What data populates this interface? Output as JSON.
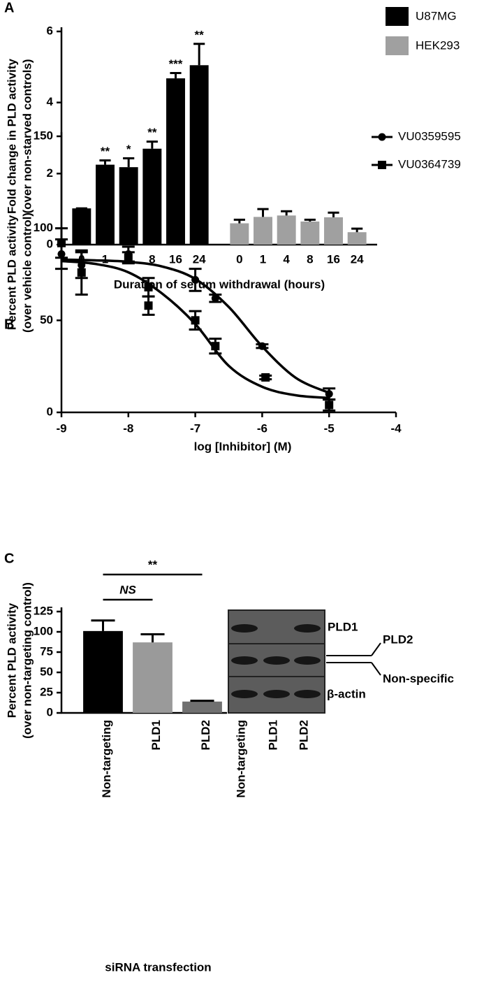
{
  "chart_data": [
    {
      "type": "bar",
      "panel": "A",
      "ylabel": [
        "Fold change in PLD activity",
        "(over non-starved controls)"
      ],
      "xlabel": "Duration of serum withdrawal (hours)",
      "categories": [
        "0",
        "1",
        "4",
        "8",
        "16",
        "24"
      ],
      "series": [
        {
          "name": "U87MG",
          "color": "#000000",
          "values": [
            1.02,
            2.25,
            2.18,
            2.7,
            4.68,
            5.05
          ],
          "errors": [
            0,
            0.12,
            0.25,
            0.2,
            0.15,
            0.6
          ],
          "annotations": [
            null,
            "**",
            "*",
            "**",
            "***",
            "**"
          ]
        },
        {
          "name": "HEK293",
          "color": "#a0a0a0",
          "values": [
            0.6,
            0.78,
            0.82,
            0.65,
            0.77,
            0.35
          ],
          "errors": [
            0.1,
            0.22,
            0.12,
            0.05,
            0.13,
            0.1
          ]
        }
      ],
      "ylim": [
        0,
        6
      ],
      "yticks": [
        0,
        2,
        4,
        6
      ],
      "legend": "top-right"
    },
    {
      "type": "scatter",
      "panel": "B",
      "ylabel": [
        "Percent PLD activity",
        "(over vehicle control)"
      ],
      "xlabel": "log [Inhibitor] (M)",
      "xlim": [
        -9,
        -4
      ],
      "xticks": [
        -9,
        -8,
        -7,
        -6,
        -5,
        -4
      ],
      "ylim": [
        0,
        150
      ],
      "yticks": [
        0,
        50,
        100,
        150
      ],
      "legend": "top-right",
      "series": [
        {
          "name": "VU0359595",
          "color": "#000000",
          "marker": "circle",
          "x": [
            -9,
            -8.7,
            -8,
            -7,
            -6.7,
            -6,
            -5
          ],
          "values": [
            86,
            80,
            86,
            72,
            62,
            36,
            10
          ],
          "errors": [
            8,
            7,
            4,
            6,
            2,
            1,
            3
          ],
          "curve": {
            "x": [
              -9,
              -8.5,
              -8,
              -7.5,
              -7,
              -6.5,
              -6,
              -5.5,
              -5
            ],
            "y": [
              83,
              82.6,
              81.8,
              79.3,
              72.5,
              57.3,
              35.8,
              18.8,
              10.6
            ]
          }
        },
        {
          "name": "VU0364739",
          "color": "#000000",
          "marker": "square",
          "x": [
            -9,
            -8.7,
            -8,
            -7.7,
            -7.7,
            -7,
            -6.7,
            -5.95,
            -5
          ],
          "values": [
            92,
            76,
            84,
            68,
            58,
            50,
            36,
            19,
            4
          ],
          "errors": [
            8,
            12,
            3,
            5,
            5,
            5,
            4,
            1,
            3
          ],
          "curve": {
            "x": [
              -9,
              -8.5,
              -8,
              -7.5,
              -7,
              -6.5,
              -6,
              -5.5,
              -5
            ],
            "y": [
              82.2,
              80.7,
              76.1,
              64.7,
              48,
              25.3,
              13.9,
              9.3,
              7.8
            ]
          }
        }
      ]
    },
    {
      "type": "bar",
      "panel": "C",
      "ylabel": [
        "Percent PLD activity",
        "(over non-targeting control)"
      ],
      "xlabel": "siRNA transfection",
      "categories": [
        "Non-targeting",
        "PLD1",
        "PLD2"
      ],
      "values": [
        101,
        87,
        14
      ],
      "errors": [
        13,
        10,
        1
      ],
      "colors": [
        "#000000",
        "#9a9a9a",
        "#707070"
      ],
      "ylim": [
        0,
        125
      ],
      "yticks": [
        0,
        25,
        50,
        75,
        100,
        125
      ],
      "brackets": [
        "NS",
        "**"
      ],
      "inset": {
        "lanes": [
          "Non-targeting",
          "PLD1",
          "PLD2"
        ],
        "bands": [
          "PLD1",
          "PLD2",
          "Non-specific",
          "β-actin"
        ]
      }
    }
  ]
}
